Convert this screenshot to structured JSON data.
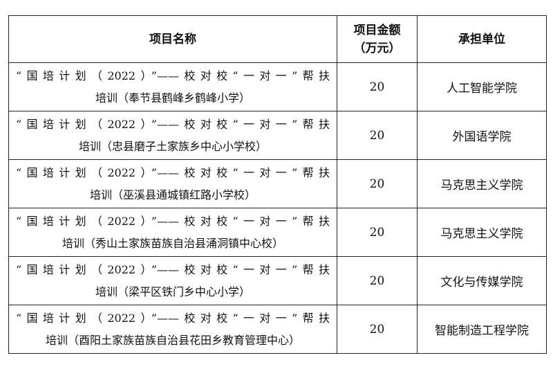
{
  "table": {
    "headers": {
      "name": "项目名称",
      "amount_line1": "项目金额",
      "amount_line2": "（万元）",
      "unit": "承担单位"
    },
    "rows": [
      {
        "line1": "“国培计划（2022）”——校对校“一对一”帮扶",
        "line2": "培训（奉节县鹤峰乡鹤峰小学）",
        "amount": "20",
        "unit": "人工智能学院"
      },
      {
        "line1": "“国培计划（2022）”——校对校“一对一”帮扶",
        "line2": "培训（忠县磨子土家族乡中心小学校）",
        "amount": "20",
        "unit": "外国语学院"
      },
      {
        "line1": "“国培计划（2022）”——校对校“一对一”帮扶",
        "line2": "培训（巫溪县通城镇红路小学校）",
        "amount": "20",
        "unit": "马克思主义学院"
      },
      {
        "line1": "“国培计划（2022）”——校对校“一对一”帮扶",
        "line2": "培训（秀山土家族苗族自治县涌洞镇中心校）",
        "amount": "20",
        "unit": "马克思主义学院"
      },
      {
        "line1": "“国培计划（2022）”——校对校“一对一”帮扶",
        "line2": "培训（梁平区铁门乡中心小学）",
        "amount": "20",
        "unit": "文化与传媒学院"
      },
      {
        "line1": "“国培计划（2022）”——校对校“一对一”帮扶",
        "line2": "培训（酉阳土家族苗族自治县花田乡教育管理中心）",
        "amount": "20",
        "unit": "智能制造工程学院"
      }
    ]
  }
}
